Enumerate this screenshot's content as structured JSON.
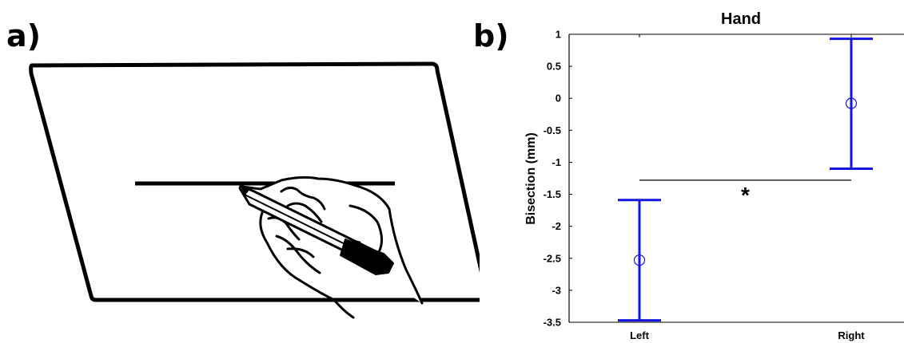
{
  "panels": {
    "a_label": "a)",
    "b_label": "b)"
  },
  "chart_data": {
    "type": "errorbar",
    "title": "Hand",
    "xlabel": "",
    "ylabel": "Bisection (mm)",
    "categories": [
      "Left",
      "Right"
    ],
    "means": [
      -2.53,
      -0.08
    ],
    "error_lower": [
      -3.47,
      -1.1
    ],
    "error_upper": [
      -1.59,
      0.93
    ],
    "ylim": [
      -3.5,
      1
    ],
    "yticks": [
      1,
      0.5,
      0,
      -0.5,
      -1,
      -1.5,
      -2,
      -2.5,
      -3,
      -3.5
    ],
    "ytick_labels": [
      "1",
      "0.5",
      "0",
      "-0.5",
      "-1",
      "-1.5",
      "-2",
      "-2.5",
      "-3",
      "-3.5"
    ],
    "series_color": "#1515dd",
    "significance": {
      "marker": "*",
      "between": [
        "Left",
        "Right"
      ],
      "y": -1.28
    },
    "grid": false
  }
}
